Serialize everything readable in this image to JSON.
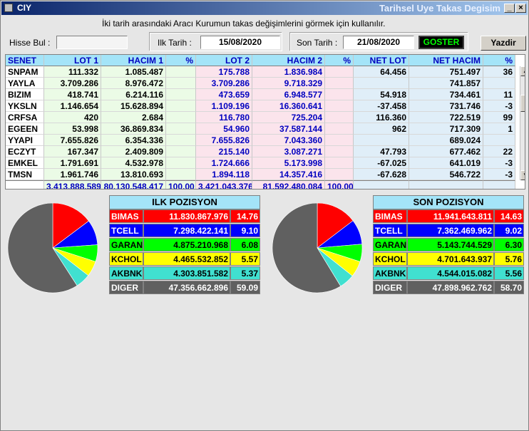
{
  "window": {
    "title": "CIY",
    "caption": "Tarihsel Uye Takas Degisim"
  },
  "hint": "İki tarih arasındaki  Aracı Kurumun takas değişimlerini görmek için kullanılır.",
  "filters": {
    "hisse_label": "Hisse Bul :",
    "hisse_value": "",
    "ilk_label": "Ilk Tarih :",
    "ilk_value": "15/08/2020",
    "son_label": "Son Tarih :",
    "son_value": "21/08/2020",
    "goster": "GOSTER",
    "yazdir": "Yazdir"
  },
  "columns": [
    "SENET",
    "LOT 1",
    "HACIM 1",
    "%",
    "LOT 2",
    "HACIM 2",
    "%",
    "NET LOT",
    "NET HACIM",
    "%"
  ],
  "rows": [
    [
      "SNPAM",
      "111.332",
      "1.085.487",
      "",
      "175.788",
      "1.836.984",
      "",
      "64.456",
      "751.497",
      "36"
    ],
    [
      "YAYLA",
      "3.709.286",
      "8.976.472",
      "",
      "3.709.286",
      "9.718.329",
      "",
      "",
      "741.857",
      ""
    ],
    [
      "BIZIM",
      "418.741",
      "6.214.116",
      "",
      "473.659",
      "6.948.577",
      "",
      "54.918",
      "734.461",
      "11"
    ],
    [
      "YKSLN",
      "1.146.654",
      "15.628.894",
      "",
      "1.109.196",
      "16.360.641",
      "",
      "-37.458",
      "731.746",
      "-3"
    ],
    [
      "CRFSA",
      "420",
      "2.684",
      "",
      "116.780",
      "725.204",
      "",
      "116.360",
      "722.519",
      "99"
    ],
    [
      "EGEEN",
      "53.998",
      "36.869.834",
      "",
      "54.960",
      "37.587.144",
      "",
      "962",
      "717.309",
      "1"
    ],
    [
      "YYAPI",
      "7.655.826",
      "6.354.336",
      "",
      "7.655.826",
      "7.043.360",
      "",
      "",
      "689.024",
      ""
    ],
    [
      "ECZYT",
      "167.347",
      "2.409.809",
      "",
      "215.140",
      "3.087.271",
      "",
      "47.793",
      "677.462",
      "22"
    ],
    [
      "EMKEL",
      "1.791.691",
      "4.532.978",
      "",
      "1.724.666",
      "5.173.998",
      "",
      "-67.025",
      "641.019",
      "-3"
    ],
    [
      "TMSN",
      "1.961.746",
      "13.810.693",
      "",
      "1.894.118",
      "14.357.416",
      "",
      "-67.628",
      "546.722",
      "-3"
    ]
  ],
  "totals": [
    "",
    "3.413.888.589",
    "80.130.548.417",
    "100,00",
    "3.421.043.376",
    "81.592.480.084",
    "100,00",
    "",
    "",
    ""
  ],
  "ilk": {
    "title": "ILK POZISYON",
    "items": [
      {
        "name": "BIMAS",
        "value": "11.830.867.976",
        "pct": "14.76",
        "pct_num": 14.76,
        "color": "#ff0000"
      },
      {
        "name": "TCELL",
        "value": "7.298.422.141",
        "pct": "9.10",
        "pct_num": 9.1,
        "color": "#0000ff"
      },
      {
        "name": "GARAN",
        "value": "4.875.210.968",
        "pct": "6.08",
        "pct_num": 6.08,
        "color": "#00ff00"
      },
      {
        "name": "KCHOL",
        "value": "4.465.532.852",
        "pct": "5.57",
        "pct_num": 5.57,
        "color": "#ffff00"
      },
      {
        "name": "AKBNK",
        "value": "4.303.851.582",
        "pct": "5.37",
        "pct_num": 5.37,
        "color": "#40e0d0"
      },
      {
        "name": "DIGER",
        "value": "47.356.662.896",
        "pct": "59.09",
        "pct_num": 59.09,
        "color": "#606060"
      }
    ]
  },
  "son": {
    "title": "SON POZISYON",
    "items": [
      {
        "name": "BIMAS",
        "value": "11.941.643.811",
        "pct": "14.63",
        "pct_num": 14.63,
        "color": "#ff0000"
      },
      {
        "name": "TCELL",
        "value": "7.362.469.962",
        "pct": "9.02",
        "pct_num": 9.02,
        "color": "#0000ff"
      },
      {
        "name": "GARAN",
        "value": "5.143.744.529",
        "pct": "6.30",
        "pct_num": 6.3,
        "color": "#00ff00"
      },
      {
        "name": "KCHOL",
        "value": "4.701.643.937",
        "pct": "5.76",
        "pct_num": 5.76,
        "color": "#ffff00"
      },
      {
        "name": "AKBNK",
        "value": "4.544.015.082",
        "pct": "5.56",
        "pct_num": 5.56,
        "color": "#40e0d0"
      },
      {
        "name": "DIGER",
        "value": "47.898.962.762",
        "pct": "58.70",
        "pct_num": 58.7,
        "color": "#606060"
      }
    ]
  }
}
